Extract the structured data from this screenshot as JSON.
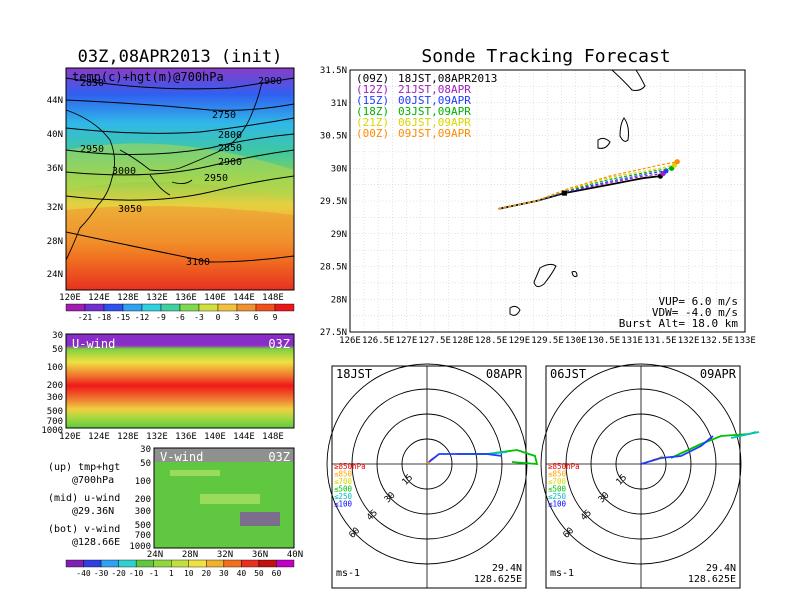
{
  "map_panel": {
    "title": "03Z,08APR2013 (init)",
    "subtitle": "temp(c)+hgt(m)@700hPa",
    "lat_ticks": [
      "44N",
      "40N",
      "36N",
      "32N",
      "28N",
      "24N"
    ],
    "lon_ticks": [
      "120E",
      "124E",
      "128E",
      "132E",
      "136E",
      "140E",
      "144E",
      "148E"
    ],
    "contours": [
      "2850",
      "2900",
      "2750",
      "2800",
      "2850",
      "2950",
      "2900",
      "3000",
      "2950",
      "3050",
      "3100"
    ],
    "colorbar_labels": [
      "-21",
      "-18",
      "-15",
      "-12",
      "-9",
      "-6",
      "-3",
      "0",
      "3",
      "6",
      "9"
    ]
  },
  "uwind_panel": {
    "label": "U-wind",
    "time": "03Z",
    "p_ticks": [
      "30",
      "50",
      "100",
      "200",
      "300",
      "500",
      "700",
      "1000"
    ],
    "lon_ticks": [
      "120E",
      "124E",
      "128E",
      "132E",
      "136E",
      "140E",
      "144E",
      "148E"
    ]
  },
  "vwind_panel": {
    "label": "V-wind",
    "time": "03Z",
    "p_ticks": [
      "30",
      "50",
      "100",
      "200",
      "300",
      "500",
      "700",
      "1000"
    ],
    "lat_ticks": [
      "24N",
      "28N",
      "32N",
      "36N",
      "40N"
    ]
  },
  "side_notes": [
    {
      "a": "(up) tmp+hgt",
      "b": "@700hPa"
    },
    {
      "a": "(mid) u-wind",
      "b": "@29.36N"
    },
    {
      "a": "(bot) v-wind",
      "b": "@128.66E"
    }
  ],
  "wind_colorbar_labels": [
    "-40",
    "-30",
    "-20",
    "-10",
    "-1",
    "1",
    "10",
    "20",
    "30",
    "40",
    "50",
    "60"
  ],
  "track_panel": {
    "title": "Sonde Tracking Forecast",
    "lat_ticks": [
      "31.5N",
      "31N",
      "30.5N",
      "30N",
      "29.5N",
      "29N",
      "28.5N",
      "28N",
      "27.5N"
    ],
    "lon_ticks": [
      "126E",
      "126.5E",
      "127E",
      "127.5E",
      "128E",
      "128.5E",
      "129E",
      "129.5E",
      "130E",
      "130.5E",
      "131E",
      "131.5E",
      "132E",
      "132.5E",
      "133E"
    ],
    "legend": [
      {
        "code": "(09Z)",
        "label": "18JST,08APR2013",
        "color": "#000000"
      },
      {
        "code": "(12Z)",
        "label": "21JST,08APR",
        "color": "#a020c0"
      },
      {
        "code": "(15Z)",
        "label": "00JST,09APR",
        "color": "#1e3cff"
      },
      {
        "code": "(18Z)",
        "label": "03JST,09APR",
        "color": "#00b000"
      },
      {
        "code": "(21Z)",
        "label": "06JST,09APR",
        "color": "#d8d800"
      },
      {
        "code": "(00Z)",
        "label": "09JST,09APR",
        "color": "#ff8c00"
      }
    ],
    "params": [
      "VUP= 6.0 m/s",
      "VDW= -4.0 m/s",
      "Burst Alt= 18.0 km"
    ]
  },
  "chart_data": {
    "type": "line",
    "title": "Sonde Tracking Forecast",
    "xlim": [
      126,
      133
    ],
    "ylim": [
      27.5,
      31.5
    ],
    "series": [
      {
        "name": "(09Z) 18JST,08APR2013",
        "color": "#000000",
        "x": [
          128.63,
          129.3,
          129.8,
          130.6,
          131.2,
          131.5
        ],
        "y": [
          29.38,
          29.5,
          29.62,
          29.75,
          29.85,
          29.88
        ]
      },
      {
        "name": "(12Z) 21JST,08APR",
        "color": "#a020c0",
        "x": [
          128.63,
          129.3,
          129.8,
          130.6,
          131.2,
          131.55
        ],
        "y": [
          29.38,
          29.5,
          29.63,
          29.78,
          29.88,
          29.92
        ]
      },
      {
        "name": "(15Z) 00JST,09APR",
        "color": "#1e3cff",
        "x": [
          128.63,
          129.3,
          129.8,
          130.6,
          131.3,
          131.6
        ],
        "y": [
          29.38,
          29.5,
          29.64,
          29.8,
          29.92,
          29.96
        ]
      },
      {
        "name": "(18Z) 03JST,09APR",
        "color": "#00b000",
        "x": [
          128.63,
          129.3,
          129.8,
          130.6,
          131.4,
          131.7
        ],
        "y": [
          29.38,
          29.5,
          29.65,
          29.83,
          29.96,
          30.0
        ]
      },
      {
        "name": "(21Z) 06JST,09APR",
        "color": "#d8d800",
        "x": [
          128.63,
          129.3,
          129.8,
          130.6,
          131.5,
          131.75
        ],
        "y": [
          29.38,
          29.5,
          29.66,
          29.86,
          30.0,
          30.05
        ]
      },
      {
        "name": "(00Z) 09JST,09APR",
        "color": "#ff8c00",
        "x": [
          128.63,
          129.3,
          129.8,
          130.6,
          131.5,
          131.8
        ],
        "y": [
          29.38,
          29.5,
          29.67,
          29.88,
          30.05,
          30.1
        ]
      }
    ]
  },
  "hodo_left": {
    "time": "18JST",
    "date": "08APR",
    "lat": "29.4N",
    "lon": "128.625E",
    "unit": "ms-1",
    "rings": [
      "15",
      "30",
      "45",
      "60"
    ]
  },
  "hodo_right": {
    "time": "06JST",
    "date": "09APR",
    "lat": "29.4N",
    "lon": "128.625E",
    "unit": "ms-1",
    "rings": [
      "15",
      "30",
      "45",
      "60"
    ]
  },
  "hodo_legend": [
    {
      "label": "≥850hPa",
      "color": "#ff0000"
    },
    {
      "label": "≤850",
      "color": "#ffa500"
    },
    {
      "label": "≤700",
      "color": "#d8d800"
    },
    {
      "label": "≤500",
      "color": "#00c000"
    },
    {
      "label": "≤250",
      "color": "#00c0c0"
    },
    {
      "label": "≤100",
      "color": "#0000ff"
    }
  ]
}
